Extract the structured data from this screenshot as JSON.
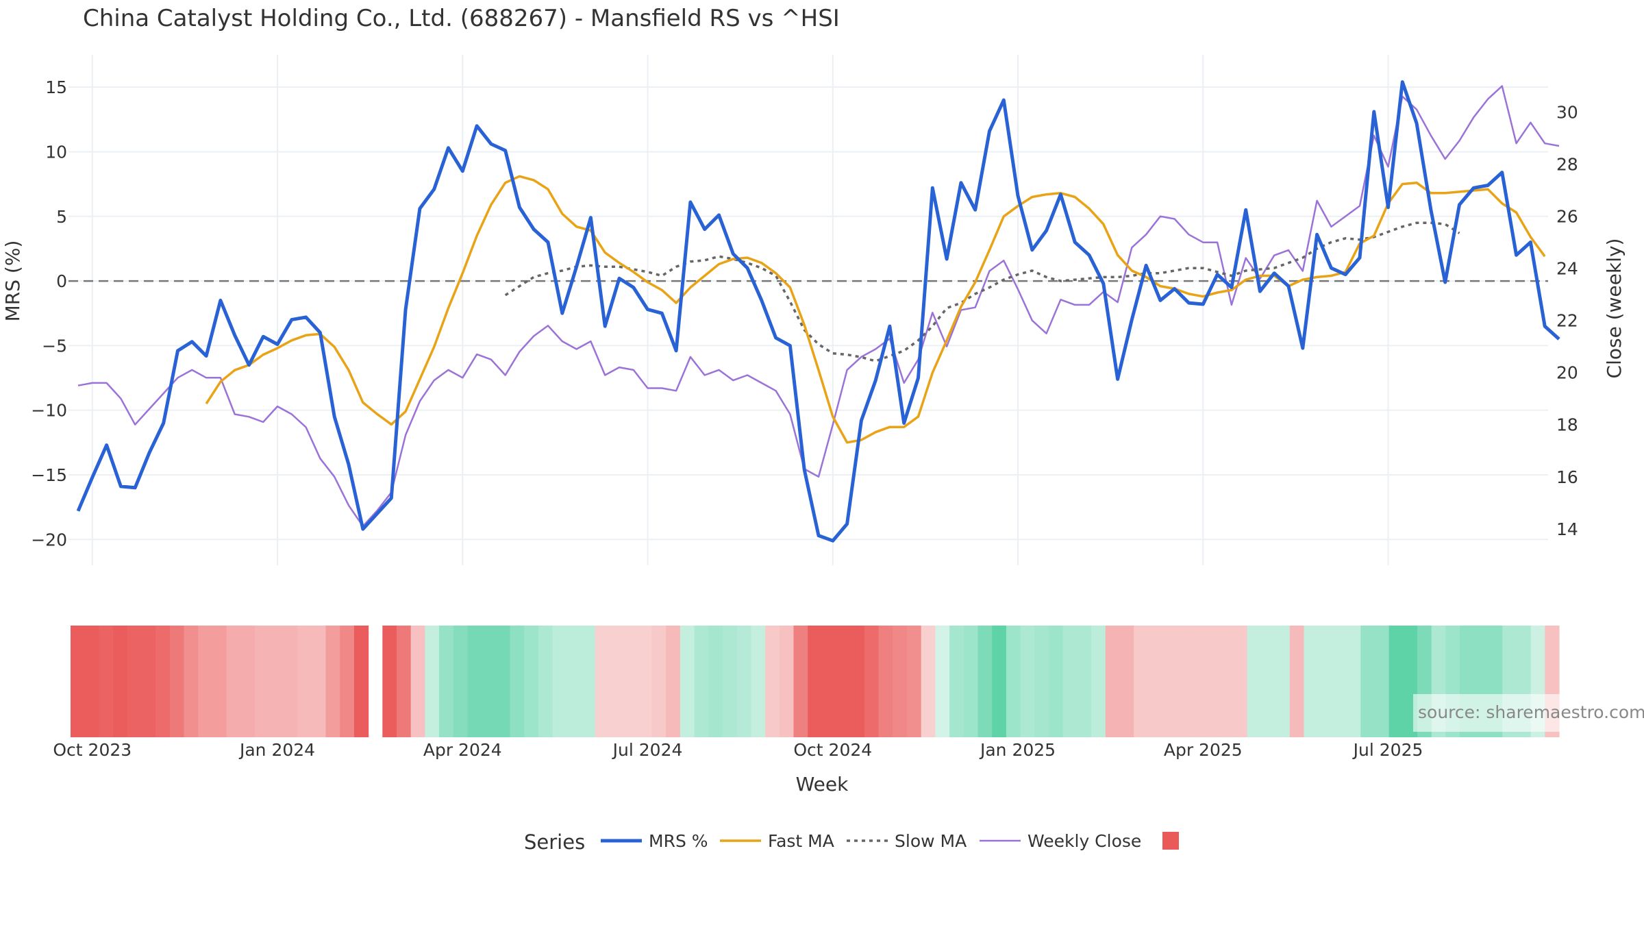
{
  "chart_data": {
    "type": "line",
    "title": "China Catalyst Holding Co., Ltd. (688267) - Mansfield RS vs ^HSI",
    "xlabel": "Week",
    "ylabel": "MRS (%)",
    "y2label": "Close (weekly)",
    "legend_title": "Series",
    "legend_placement": "bottom",
    "grid": true,
    "ylim": [
      -22,
      17.5
    ],
    "y2lim": [
      12.6,
      32.2
    ],
    "yticks": [
      15,
      10,
      5,
      0,
      -5,
      -10,
      -15,
      -20
    ],
    "y2ticks": [
      30,
      28,
      26,
      24,
      22,
      20,
      18,
      16,
      14
    ],
    "xticks": [
      {
        "label": "Oct 2023",
        "week": 1
      },
      {
        "label": "Jan 2024",
        "week": 14
      },
      {
        "label": "Apr 2024",
        "week": 27
      },
      {
        "label": "Jul 2024",
        "week": 40
      },
      {
        "label": "Oct 2024",
        "week": 53
      },
      {
        "label": "Jan 2025",
        "week": 66
      },
      {
        "label": "Apr 2025",
        "week": 79
      },
      {
        "label": "Jul 2025",
        "week": 92
      }
    ],
    "zero_line": 0,
    "series": [
      {
        "name": "MRS %",
        "axis": "left",
        "color": "#2962d4",
        "dash": "solid",
        "start_week": 0,
        "values": [
          -17.8,
          -15.2,
          -12.7,
          -15.9,
          -16.0,
          -13.3,
          -11.0,
          -5.4,
          -4.7,
          -5.8,
          -1.5,
          -4.2,
          -6.5,
          -4.3,
          -4.9,
          -3.0,
          -2.8,
          -4.0,
          -10.5,
          -14.2,
          -19.2,
          -18.0,
          -16.8,
          -2.2,
          5.6,
          7.1,
          10.3,
          8.5,
          12.0,
          10.6,
          10.1,
          5.7,
          4.0,
          3.0,
          -2.5,
          1.1,
          4.9,
          -3.5,
          0.2,
          -0.5,
          -2.2,
          -2.5,
          -5.4,
          6.1,
          4.0,
          5.1,
          2.1,
          1.0,
          -1.5,
          -4.4,
          -5.0,
          -14.6,
          -19.7,
          -20.1,
          -18.8,
          -10.8,
          -7.7,
          -3.5,
          -11.0,
          -7.5,
          7.2,
          1.7,
          7.6,
          5.5,
          11.6,
          14.0,
          6.6,
          2.4,
          3.9,
          6.7,
          3.0,
          2.0,
          -0.2,
          -7.6,
          -3.0,
          1.2,
          -1.5,
          -0.6,
          -1.7,
          -1.8,
          0.5,
          -0.5,
          5.5,
          -0.8,
          0.6,
          -0.4,
          -5.2,
          3.6,
          1.0,
          0.5,
          1.8,
          13.1,
          5.7,
          15.4,
          12.2,
          5.5,
          -0.1,
          5.9,
          7.2,
          7.4,
          8.4,
          2.0,
          3.0,
          -3.5,
          -4.5
        ]
      },
      {
        "name": "Fast MA",
        "axis": "left",
        "color": "#e8a317",
        "dash": "solid",
        "start_week": 9,
        "values": [
          -9.5,
          -7.8,
          -6.9,
          -6.5,
          -5.7,
          -5.2,
          -4.6,
          -4.2,
          -4.1,
          -5.1,
          -6.9,
          -9.4,
          -10.3,
          -11.1,
          -10.1,
          -7.6,
          -5.1,
          -2.1,
          0.6,
          3.5,
          5.9,
          7.6,
          8.1,
          7.8,
          7.1,
          5.2,
          4.2,
          3.9,
          2.2,
          1.4,
          0.7,
          -0.1,
          -0.7,
          -1.7,
          -0.5,
          0.4,
          1.3,
          1.7,
          1.8,
          1.4,
          0.6,
          -0.5,
          -3.4,
          -6.9,
          -10.5,
          -12.5,
          -12.3,
          -11.7,
          -11.3,
          -11.3,
          -10.5,
          -7.1,
          -4.6,
          -2.0,
          -0.1,
          2.4,
          5.0,
          5.8,
          6.5,
          6.7,
          6.8,
          6.5,
          5.6,
          4.4,
          2.0,
          0.8,
          0.3,
          -0.4,
          -0.6,
          -1.0,
          -1.2,
          -0.9,
          -0.7,
          0.1,
          0.4,
          0.4,
          -0.4,
          0.1,
          0.3,
          0.4,
          0.7,
          2.9,
          3.5,
          6.0,
          7.5,
          7.6,
          6.8,
          6.8,
          6.9,
          7.0,
          7.1,
          6.0,
          5.3,
          3.4,
          1.9
        ]
      },
      {
        "name": "Slow MA",
        "axis": "left",
        "color": "#666666",
        "dash": "dot",
        "start_week": 30,
        "values": [
          -1.1,
          -0.4,
          0.3,
          0.6,
          0.8,
          1.1,
          1.2,
          1.1,
          1.1,
          0.9,
          0.7,
          0.4,
          1.1,
          1.5,
          1.6,
          1.9,
          1.7,
          1.4,
          1.0,
          0.4,
          -1.6,
          -3.8,
          -4.9,
          -5.6,
          -5.7,
          -5.9,
          -6.2,
          -5.8,
          -5.4,
          -4.6,
          -3.5,
          -2.1,
          -1.7,
          -1.0,
          -0.5,
          0.1,
          0.5,
          0.8,
          0.3,
          0.0,
          0.1,
          0.2,
          0.3,
          0.3,
          0.4,
          0.6,
          0.6,
          0.8,
          1.0,
          1.0,
          0.7,
          0.4,
          0.8,
          0.9,
          1.0,
          1.4,
          1.8,
          2.5,
          3.0,
          3.3,
          3.2,
          3.4,
          3.8,
          4.2,
          4.5,
          4.5,
          4.4,
          3.7
        ]
      },
      {
        "name": "Weekly Close",
        "axis": "right",
        "color": "#9b72d8",
        "dash": "solid",
        "start_week": 0,
        "values": [
          19.5,
          19.6,
          19.6,
          19.0,
          18.0,
          18.6,
          19.2,
          19.8,
          20.1,
          19.8,
          19.8,
          18.4,
          18.3,
          18.1,
          18.7,
          18.4,
          17.9,
          16.7,
          16.0,
          14.9,
          14.1,
          14.7,
          15.4,
          17.6,
          18.9,
          19.7,
          20.1,
          19.8,
          20.7,
          20.5,
          19.9,
          20.8,
          21.4,
          21.8,
          21.2,
          20.9,
          21.2,
          19.9,
          20.2,
          20.1,
          19.4,
          19.4,
          19.3,
          20.6,
          19.9,
          20.1,
          19.7,
          19.9,
          19.6,
          19.3,
          18.4,
          16.3,
          16.0,
          18.0,
          20.1,
          20.6,
          20.9,
          21.3,
          19.6,
          20.5,
          22.3,
          21.0,
          22.4,
          22.5,
          23.9,
          24.3,
          23.2,
          22.0,
          21.5,
          22.8,
          22.6,
          22.6,
          23.1,
          22.7,
          24.8,
          25.3,
          26.0,
          25.9,
          25.3,
          25.0,
          25.0,
          22.6,
          24.4,
          23.6,
          24.5,
          24.7,
          23.9,
          26.6,
          25.6,
          26.0,
          26.4,
          29.1,
          27.9,
          30.6,
          30.1,
          29.1,
          28.2,
          28.9,
          29.8,
          30.5,
          31.0,
          28.8,
          29.6,
          28.8,
          28.7
        ]
      }
    ],
    "heatmap": {
      "start_week": 0,
      "gap_weeks": [
        21
      ],
      "values": [
        -0.95,
        -0.95,
        -0.9,
        -0.95,
        -0.9,
        -0.9,
        -0.85,
        -0.75,
        -0.6,
        -0.5,
        -0.5,
        -0.4,
        -0.4,
        -0.35,
        -0.35,
        -0.35,
        -0.3,
        -0.3,
        -0.5,
        -0.65,
        -0.95,
        null,
        -0.95,
        -0.75,
        -0.25,
        0.2,
        0.5,
        0.6,
        0.7,
        0.7,
        0.7,
        0.55,
        0.45,
        0.35,
        0.25,
        0.25,
        0.25,
        -0.15,
        -0.15,
        -0.15,
        -0.15,
        -0.2,
        -0.3,
        0.2,
        0.35,
        0.4,
        0.35,
        0.3,
        0.2,
        -0.2,
        -0.25,
        -0.7,
        -0.95,
        -0.95,
        -0.95,
        -0.95,
        -0.85,
        -0.7,
        -0.65,
        -0.6,
        -0.15,
        0.1,
        0.4,
        0.45,
        0.65,
        0.85,
        0.45,
        0.35,
        0.4,
        0.45,
        0.35,
        0.35,
        0.25,
        -0.35,
        -0.35,
        -0.2,
        -0.2,
        -0.2,
        -0.2,
        -0.2,
        -0.2,
        -0.2,
        -0.2,
        0.2,
        0.2,
        0.2,
        -0.3,
        0.2,
        0.2,
        0.2,
        0.2,
        0.5,
        0.5,
        0.85,
        0.85,
        0.65,
        0.35,
        0.45,
        0.55,
        0.55,
        0.55,
        0.35,
        0.35,
        0.15,
        -0.25
      ]
    },
    "legend_entries": [
      "MRS %",
      "Fast MA",
      "Slow MA",
      "Weekly Close",
      ""
    ],
    "legend_swatch_color": "#ea5a59",
    "annotation": "source: sharemaestro.com"
  }
}
